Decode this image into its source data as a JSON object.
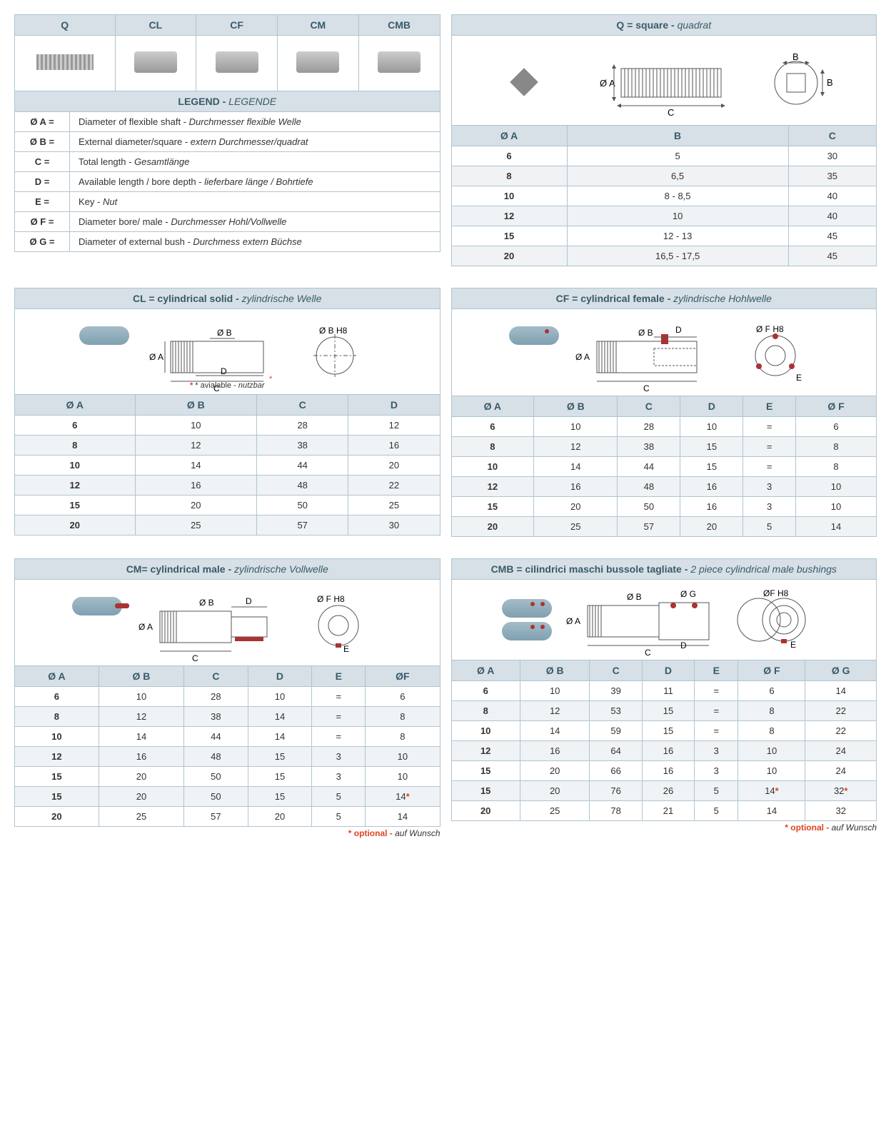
{
  "colors": {
    "border": "#b0c4d0",
    "header_bg": "#d6e0e6",
    "alt_bg": "#eff3f5",
    "text": "#333333",
    "header_text": "#3a5a6a",
    "accent_red": "#dd4422"
  },
  "typeHeader": {
    "cols": [
      "Q",
      "CL",
      "CF",
      "CM",
      "CMB"
    ]
  },
  "legend": {
    "title": "LEGEND - ",
    "title_it": "LEGENDE",
    "rows": [
      {
        "sym": "Ø A =",
        "en": "Diameter of flexible shaft - ",
        "it": "Durchmesser flexible Welle"
      },
      {
        "sym": "Ø B =",
        "en": "External diameter/square - ",
        "it": "extern Durchmesser/quadrat"
      },
      {
        "sym": "C =",
        "en": "Total length -  ",
        "it": "Gesamtlänge"
      },
      {
        "sym": "D =",
        "en": "Available length / bore depth - ",
        "it": "lieferbare länge / Bohrtiefe"
      },
      {
        "sym": "E =",
        "en": "Key -  ",
        "it": "Nut"
      },
      {
        "sym": "Ø F =",
        "en": "Diameter bore/ male - ",
        "it": "Durchmesser Hohl/Vollwelle"
      },
      {
        "sym": "Ø G =",
        "en": "Diameter of external bush - ",
        "it": "Durchmess extern Büchse"
      }
    ]
  },
  "panels": {
    "Q": {
      "title_code": "Q = ",
      "title_en": "square - ",
      "title_it": "quadrat",
      "headers": [
        "Ø A",
        "B",
        "C"
      ],
      "rows": [
        [
          "6",
          "5",
          "30"
        ],
        [
          "8",
          "6,5",
          "35"
        ],
        [
          "10",
          "8 - 8,5",
          "40"
        ],
        [
          "12",
          "10",
          "40"
        ],
        [
          "15",
          "12 - 13",
          "45"
        ],
        [
          "20",
          "16,5 - 17,5",
          "45"
        ]
      ]
    },
    "CL": {
      "title_code": "CL = ",
      "title_en": "cylindrical solid - ",
      "title_it": "zylindrische Welle",
      "note": "* avialable - ",
      "note_it": "nutzbar",
      "headers": [
        "Ø A",
        "Ø B",
        "C",
        "D"
      ],
      "rows": [
        [
          "6",
          "10",
          "28",
          "12"
        ],
        [
          "8",
          "12",
          "38",
          "16"
        ],
        [
          "10",
          "14",
          "44",
          "20"
        ],
        [
          "12",
          "16",
          "48",
          "22"
        ],
        [
          "15",
          "20",
          "50",
          "25"
        ],
        [
          "20",
          "25",
          "57",
          "30"
        ]
      ]
    },
    "CF": {
      "title_code": "CF = ",
      "title_en": "cylindrical female - ",
      "title_it": "zylindrische  Hohlwelle",
      "headers": [
        "Ø A",
        "Ø B",
        "C",
        "D",
        "E",
        "Ø F"
      ],
      "rows": [
        [
          "6",
          "10",
          "28",
          "10",
          "=",
          "6"
        ],
        [
          "8",
          "12",
          "38",
          "15",
          "=",
          "8"
        ],
        [
          "10",
          "14",
          "44",
          "15",
          "=",
          "8"
        ],
        [
          "12",
          "16",
          "48",
          "16",
          "3",
          "10"
        ],
        [
          "15",
          "20",
          "50",
          "16",
          "3",
          "10"
        ],
        [
          "20",
          "25",
          "57",
          "20",
          "5",
          "14"
        ]
      ]
    },
    "CM": {
      "title_code": "CM= ",
      "title_en": "cylindrical male - ",
      "title_it": "zylindrische  Vollwelle",
      "headers": [
        "Ø A",
        "Ø B",
        "C",
        "D",
        "E",
        "ØF"
      ],
      "rows": [
        [
          "6",
          "10",
          "28",
          "10",
          "=",
          "6"
        ],
        [
          "8",
          "12",
          "38",
          "14",
          "=",
          "8"
        ],
        [
          "10",
          "14",
          "44",
          "14",
          "=",
          "8"
        ],
        [
          "12",
          "16",
          "48",
          "15",
          "3",
          "10"
        ],
        [
          "15",
          "20",
          "50",
          "15",
          "3",
          "10"
        ],
        [
          "15",
          "20",
          "50",
          "15",
          "5",
          "14*"
        ],
        [
          "20",
          "25",
          "57",
          "20",
          "5",
          "14"
        ]
      ],
      "foot": "* optional - ",
      "foot_it": "auf Wunsch"
    },
    "CMB": {
      "title_code": "CMB = ",
      "title_en": "cilindrici maschi bussole tagliate - ",
      "title_it": "2 piece cylindrical male bushings",
      "headers": [
        "Ø A",
        "Ø B",
        "C",
        "D",
        "E",
        "Ø F",
        "Ø G"
      ],
      "rows": [
        [
          "6",
          "10",
          "39",
          "11",
          "=",
          "6",
          "14"
        ],
        [
          "8",
          "12",
          "53",
          "15",
          "=",
          "8",
          "22"
        ],
        [
          "10",
          "14",
          "59",
          "15",
          "=",
          "8",
          "22"
        ],
        [
          "12",
          "16",
          "64",
          "16",
          "3",
          "10",
          "24"
        ],
        [
          "15",
          "20",
          "66",
          "16",
          "3",
          "10",
          "24"
        ],
        [
          "15",
          "20",
          "76",
          "26",
          "5",
          "14*",
          "32*"
        ],
        [
          "20",
          "25",
          "78",
          "21",
          "5",
          "14",
          "32"
        ]
      ],
      "foot": "* optional - ",
      "foot_it": "auf Wunsch"
    }
  }
}
